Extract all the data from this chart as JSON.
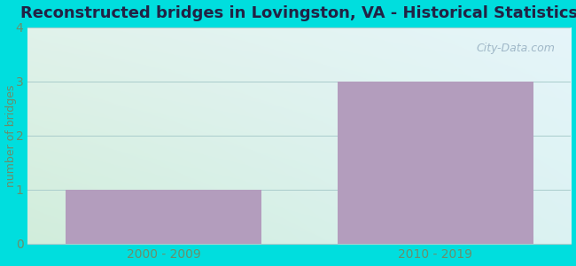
{
  "title": "Reconstructed bridges in Lovingston, VA - Historical Statistics",
  "categories": [
    "2000 - 2009",
    "2010 - 2019"
  ],
  "values": [
    1,
    3
  ],
  "bar_color": "#b39dbd",
  "ylabel": "number of bridges",
  "ylim": [
    0,
    4
  ],
  "yticks": [
    0,
    1,
    2,
    3,
    4
  ],
  "title_fontsize": 13,
  "label_fontsize": 9,
  "tick_fontsize": 10,
  "bg_outer": "#00dede",
  "bg_grad_topleft": "#d8eee8",
  "bg_grad_topright": "#cce8f0",
  "bg_grad_bottomleft": "#c8e8d8",
  "bg_grad_bottomright": "#ddf0f8",
  "grid_color": "#aacccc",
  "axis_label_color": "#6b8e6b",
  "tick_label_color": "#6b8e6b",
  "watermark_text": "City-Data.com",
  "watermark_color": "#a0b8c8",
  "title_color": "#222244"
}
